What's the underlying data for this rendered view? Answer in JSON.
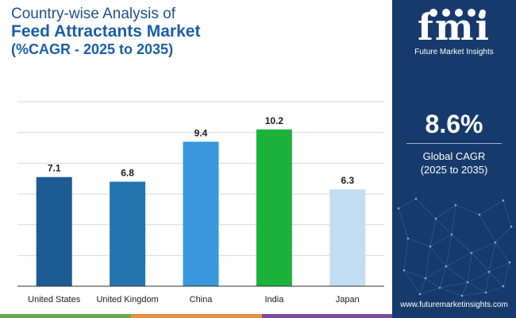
{
  "title": {
    "line1": "Country-wise Analysis of",
    "line2": "Feed Attractants Market",
    "line3": "(%CAGR - 2025 to 2035)"
  },
  "colors": {
    "title_line1": "#1e4f8a",
    "title_emphasis": "#1a5ea8",
    "sidebar_bg": "#163a6b",
    "gridline": "#d9d9d9",
    "axis": "#333333",
    "strip": [
      "#6aa84f",
      "#e69138",
      "#7b4a9e",
      "#163a6b"
    ]
  },
  "chart_data": {
    "type": "bar",
    "title": "Country-wise Analysis of Feed Attractants Market (%CAGR - 2025 to 2035)",
    "xlabel": "",
    "ylabel": "",
    "ylim": [
      0,
      12
    ],
    "grid": true,
    "categories": [
      "United States",
      "United Kingdom",
      "China",
      "India",
      "Japan"
    ],
    "values": [
      7.1,
      6.8,
      9.4,
      10.2,
      6.3
    ],
    "value_labels": [
      "7.1",
      "6.8",
      "9.4",
      "10.2",
      "6.3"
    ],
    "bar_colors": [
      "#1c5b94",
      "#2473b1",
      "#3898db",
      "#1cb33c",
      "#c3def1"
    ]
  },
  "sidebar": {
    "logo_text": "fmi",
    "logo_subtitle": "Future Market Insights",
    "cagr_value": "8.6%",
    "cagr_label": "Global CAGR",
    "cagr_period": "(2025 to 2035)",
    "website": "www.futuremarketinsights.com"
  }
}
